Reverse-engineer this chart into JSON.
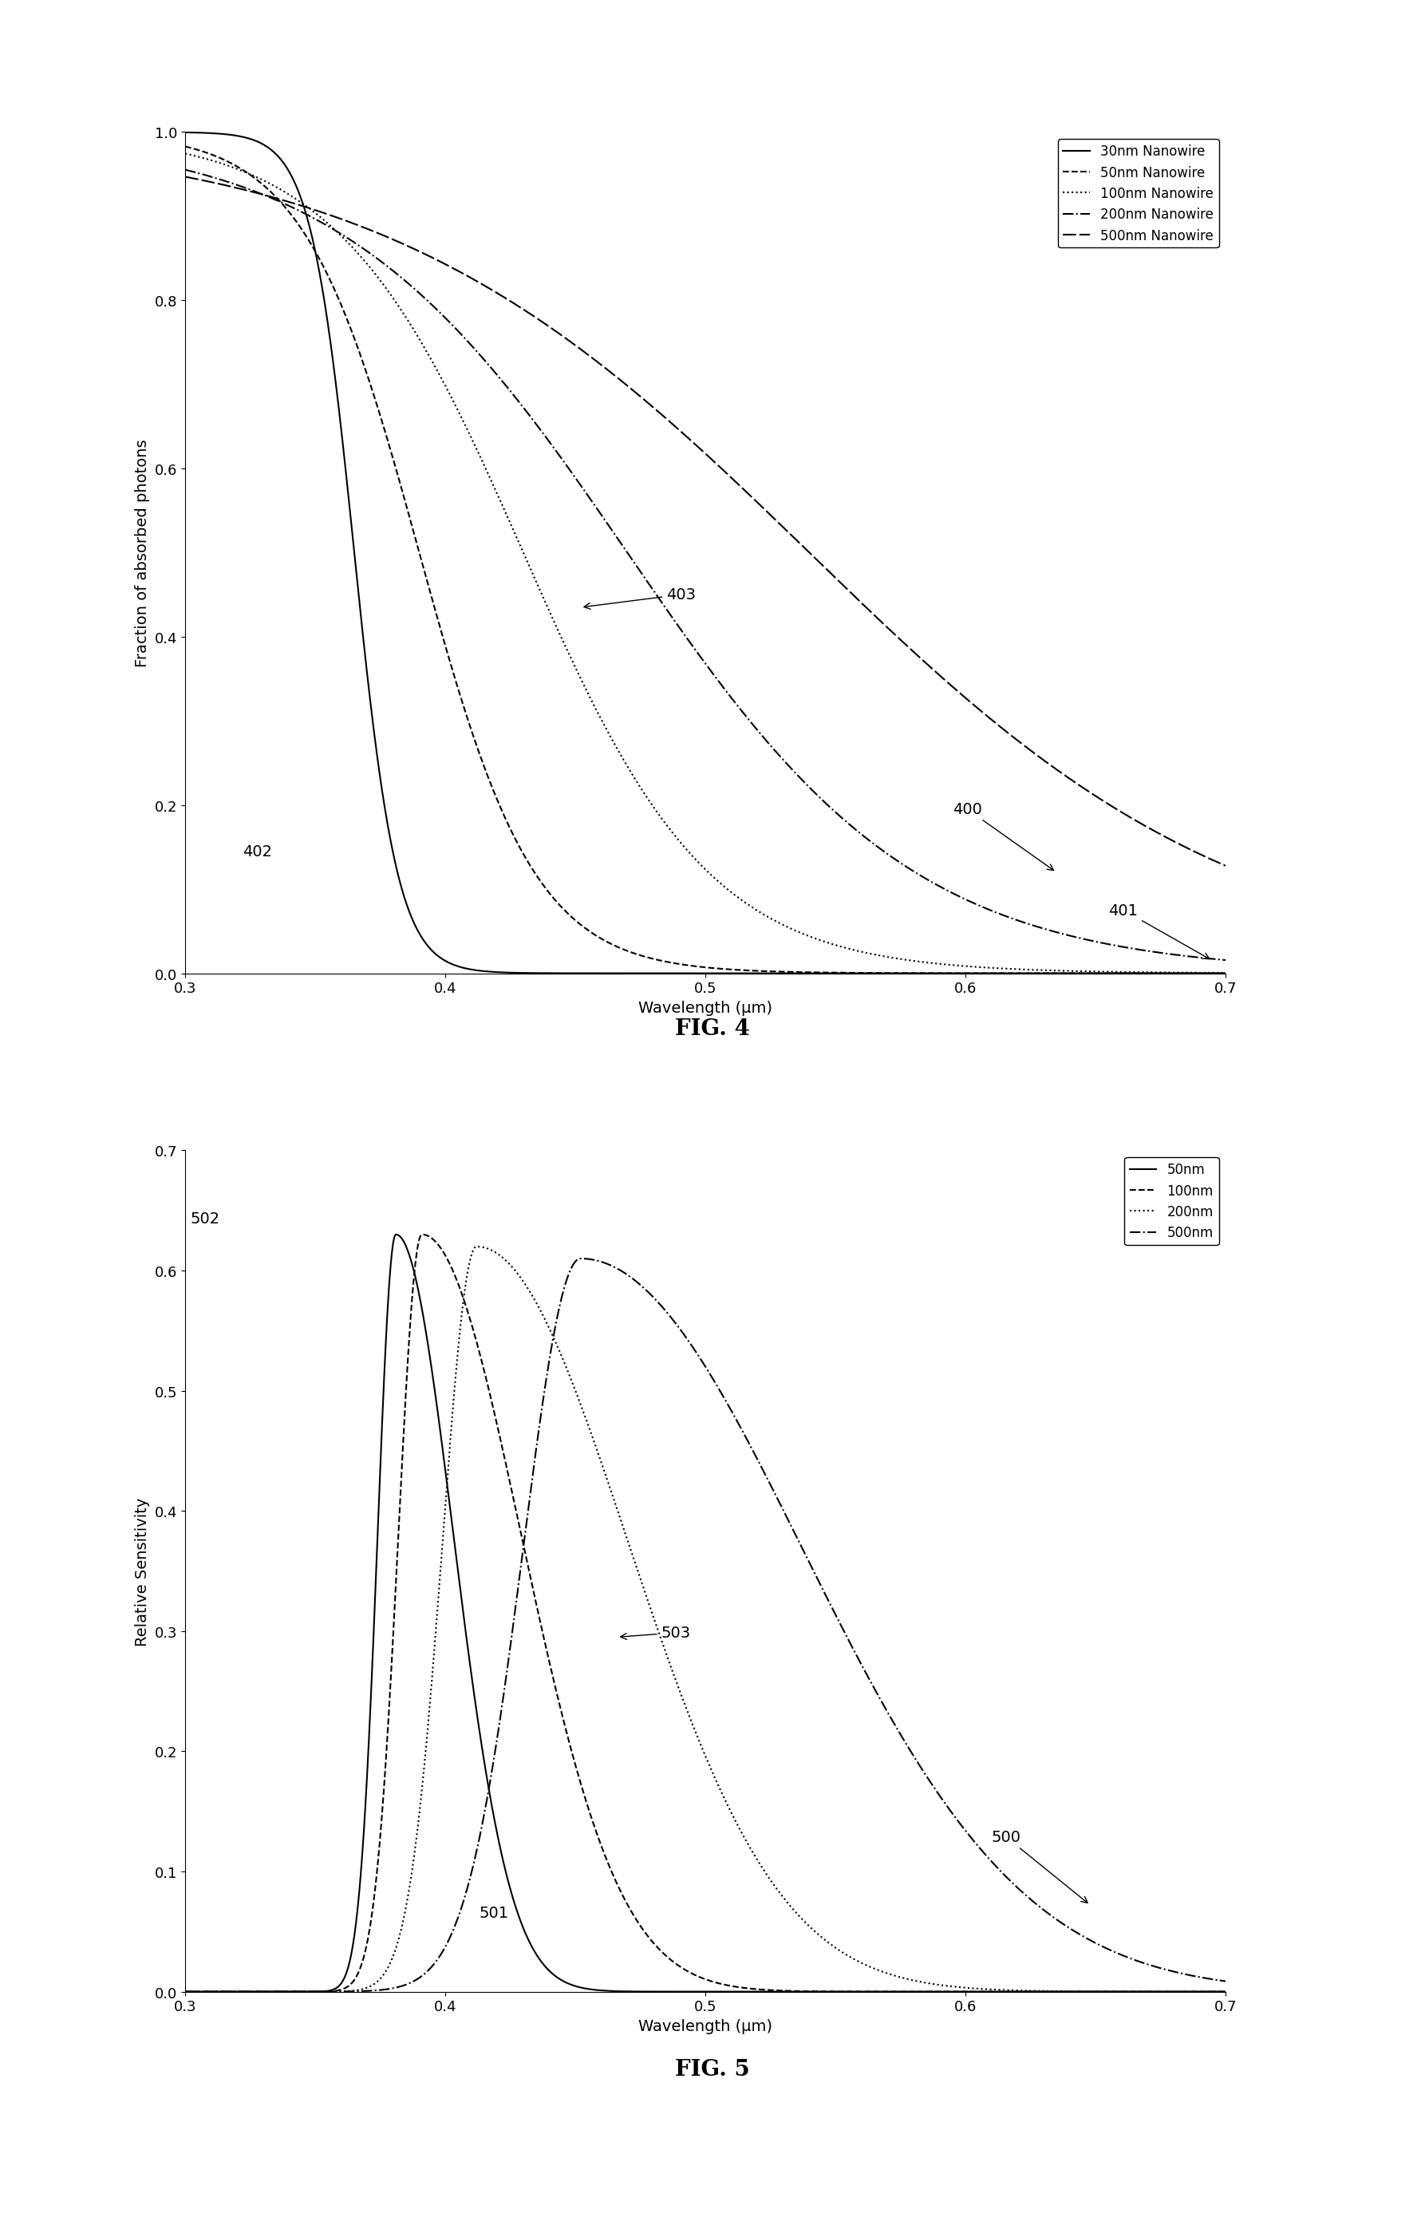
{
  "fig4": {
    "title": "FIG. 4",
    "xlabel": "Wavelength (μm)",
    "ylabel": "Fraction of absorbed photons",
    "xlim": [
      0.3,
      0.7
    ],
    "ylim": [
      0.0,
      1.0
    ],
    "yticks": [
      0.0,
      0.2,
      0.4,
      0.6,
      0.8,
      1.0
    ],
    "xticks": [
      0.3,
      0.4,
      0.5,
      0.6,
      0.7
    ],
    "legend_labels": [
      "30nm Nanowire",
      "50nm Nanowire",
      "100nm Nanowire",
      "200nm Nanowire",
      "500nm Nanowire"
    ]
  },
  "fig5": {
    "title": "FIG. 5",
    "xlabel": "Wavelength (μm)",
    "ylabel": "Relative Sensitivity",
    "xlim": [
      0.3,
      0.7
    ],
    "ylim": [
      0.0,
      0.7
    ],
    "yticks": [
      0.0,
      0.1,
      0.2,
      0.3,
      0.4,
      0.5,
      0.6,
      0.7
    ],
    "xticks": [
      0.3,
      0.4,
      0.5,
      0.6,
      0.7
    ],
    "legend_labels": [
      "50nm",
      "100nm",
      "200nm",
      "500nm"
    ]
  },
  "background_color": "#ffffff",
  "line_color": "#000000",
  "linewidth": 1.5,
  "fontsize_label": 14,
  "fontsize_tick": 13,
  "fontsize_legend": 12,
  "fontsize_title": 20,
  "fontsize_annotation": 14
}
